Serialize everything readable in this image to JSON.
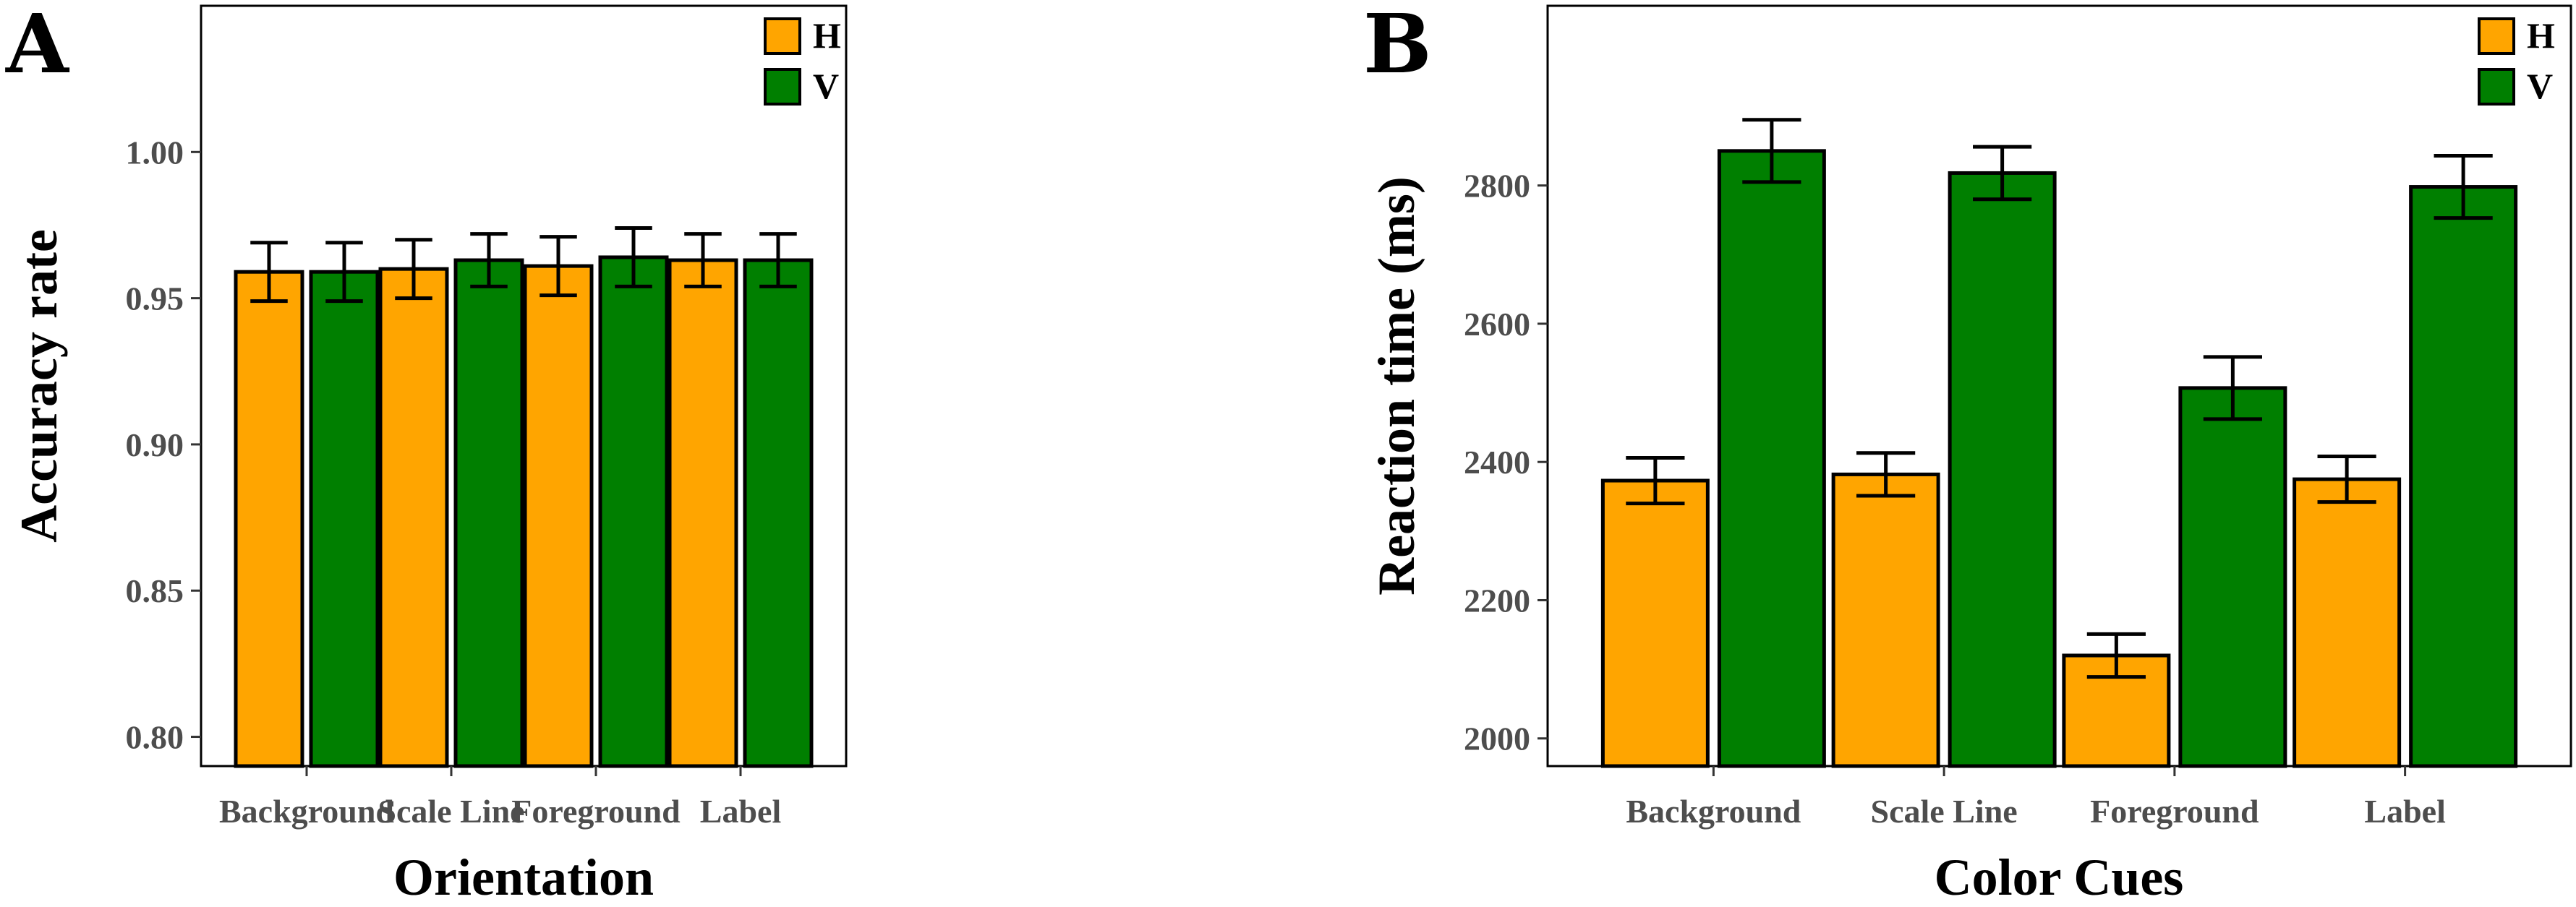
{
  "colors": {
    "H": "#FFA500",
    "V": "#007F00"
  },
  "chart_data": [
    {
      "panel": "A",
      "type": "bar",
      "categories": [
        "Background",
        "Scale Line",
        "Foreground",
        "Label"
      ],
      "xlabel": "Orientation",
      "ylabel": "Accuracy rate",
      "ylim": [
        0.79,
        1.05
      ],
      "yticks": [
        0.8,
        0.85,
        0.9,
        0.95,
        1.0
      ],
      "ytick_labels": [
        "0.80",
        "0.85",
        "0.90",
        "0.95",
        "1.00"
      ],
      "legend": [
        "H",
        "V"
      ],
      "legend_position": "top-right",
      "series": [
        {
          "name": "H",
          "values": [
            0.959,
            0.96,
            0.961,
            0.963
          ],
          "errors": [
            0.01,
            0.01,
            0.01,
            0.009
          ]
        },
        {
          "name": "V",
          "values": [
            0.959,
            0.963,
            0.964,
            0.963
          ],
          "errors": [
            0.01,
            0.009,
            0.01,
            0.009
          ]
        }
      ]
    },
    {
      "panel": "B",
      "type": "bar",
      "categories": [
        "Background",
        "Scale Line",
        "Foreground",
        "Label"
      ],
      "xlabel": "Color Cues",
      "ylabel": "Reaction time (ms)",
      "ylim": [
        1960,
        3060
      ],
      "yticks": [
        2000,
        2200,
        2400,
        2600,
        2800
      ],
      "ytick_labels": [
        "2000",
        "2200",
        "2400",
        "2600",
        "2800"
      ],
      "legend": [
        "H",
        "V"
      ],
      "legend_position": "top-right",
      "series": [
        {
          "name": "H",
          "values": [
            2373,
            2382,
            2120,
            2375
          ],
          "errors": [
            33,
            31,
            31,
            33
          ]
        },
        {
          "name": "V",
          "values": [
            2850,
            2818,
            2507,
            2798
          ],
          "errors": [
            45,
            38,
            45,
            45
          ]
        }
      ]
    }
  ]
}
